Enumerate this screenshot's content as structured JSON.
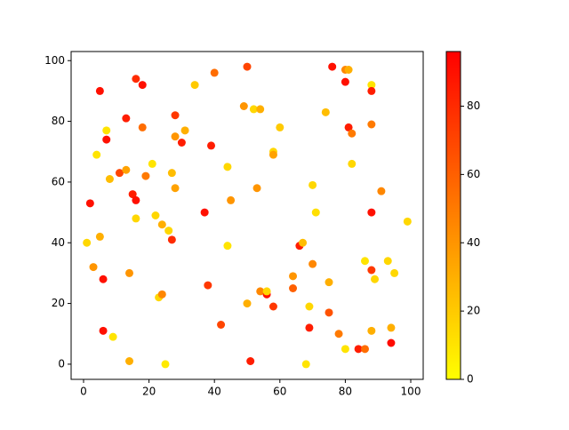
{
  "chart_data": {
    "type": "scatter",
    "x": [
      1,
      2,
      3,
      4,
      5,
      5,
      6,
      6,
      7,
      7,
      8,
      9,
      11,
      13,
      13,
      14,
      14,
      15,
      16,
      16,
      16,
      18,
      18,
      19,
      21,
      22,
      23,
      24,
      24,
      25,
      26,
      27,
      27,
      28,
      28,
      28,
      30,
      31,
      34,
      37,
      38,
      39,
      40,
      42,
      44,
      44,
      45,
      49,
      50,
      50,
      51,
      52,
      53,
      54,
      54,
      56,
      56,
      58,
      58,
      58,
      60,
      64,
      64,
      66,
      67,
      68,
      69,
      69,
      70,
      70,
      71,
      74,
      75,
      75,
      76,
      78,
      80,
      80,
      80,
      81,
      81,
      82,
      82,
      84,
      86,
      86,
      88,
      88,
      88,
      88,
      88,
      88,
      89,
      91,
      93,
      94,
      94,
      95,
      99
    ],
    "y": [
      40,
      53,
      32,
      69,
      90,
      42,
      28,
      11,
      77,
      74,
      61,
      9,
      63,
      64,
      81,
      30,
      1,
      56,
      94,
      54,
      48,
      92,
      78,
      62,
      66,
      49,
      22,
      46,
      23,
      0,
      44,
      63,
      41,
      82,
      75,
      58,
      73,
      77,
      92,
      50,
      26,
      72,
      96,
      13,
      65,
      39,
      54,
      85,
      98,
      20,
      1,
      84,
      58,
      84,
      24,
      23,
      24,
      70,
      69,
      19,
      78,
      29,
      25,
      39,
      40,
      0,
      19,
      12,
      59,
      33,
      50,
      83,
      27,
      17,
      98,
      10,
      97,
      93,
      5,
      97,
      78,
      76,
      66,
      5,
      5,
      34,
      92,
      90,
      79,
      50,
      31,
      11,
      28,
      57,
      34,
      12,
      7,
      30,
      47
    ],
    "c": [
      15,
      90,
      40,
      10,
      90,
      30,
      90,
      90,
      10,
      90,
      25,
      10,
      70,
      35,
      85,
      40,
      30,
      85,
      80,
      90,
      15,
      90,
      55,
      50,
      10,
      15,
      15,
      30,
      45,
      8,
      15,
      25,
      80,
      75,
      40,
      35,
      85,
      30,
      20,
      90,
      75,
      85,
      55,
      70,
      15,
      10,
      40,
      40,
      70,
      30,
      85,
      15,
      40,
      30,
      45,
      90,
      15,
      15,
      35,
      75,
      20,
      40,
      60,
      85,
      25,
      10,
      15,
      85,
      15,
      45,
      12,
      25,
      30,
      65,
      90,
      50,
      45,
      90,
      10,
      30,
      85,
      50,
      15,
      85,
      55,
      10,
      10,
      85,
      50,
      90,
      75,
      30,
      15,
      45,
      15,
      30,
      92,
      15,
      15
    ],
    "xlim": [
      -3.8,
      103.8
    ],
    "ylim": [
      -5,
      103
    ],
    "xticks": [
      0,
      20,
      40,
      60,
      80,
      100
    ],
    "yticks": [
      0,
      20,
      40,
      60,
      80,
      100
    ],
    "clim": [
      0,
      96
    ],
    "cticks": [
      0,
      20,
      40,
      60,
      80
    ],
    "colormap": [
      "#ffff00",
      "#ff0000"
    ]
  }
}
